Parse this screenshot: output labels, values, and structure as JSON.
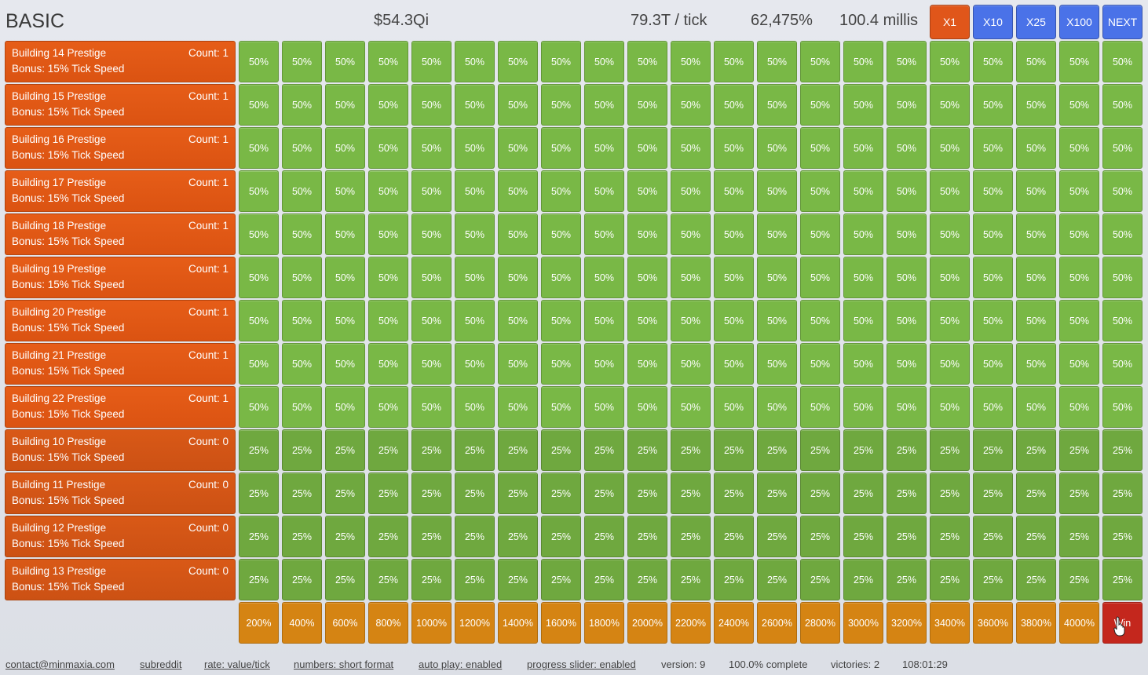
{
  "header": {
    "mode": "BASIC",
    "money": "$54.3Qi",
    "per_tick": "79.3T / tick",
    "percent": "62,475%",
    "millis": "100.4 millis",
    "multipliers": [
      {
        "label": "X1",
        "active": true
      },
      {
        "label": "X10",
        "active": false
      },
      {
        "label": "X25",
        "active": false
      },
      {
        "label": "X100",
        "active": false
      },
      {
        "label": "NEXT",
        "active": false
      }
    ]
  },
  "buildings": [
    {
      "name": "Building 14 Prestige",
      "count": "Count: 1",
      "bonus": "Bonus: 15% Tick Speed",
      "cell_value": "50%"
    },
    {
      "name": "Building 15 Prestige",
      "count": "Count: 1",
      "bonus": "Bonus: 15% Tick Speed",
      "cell_value": "50%"
    },
    {
      "name": "Building 16 Prestige",
      "count": "Count: 1",
      "bonus": "Bonus: 15% Tick Speed",
      "cell_value": "50%"
    },
    {
      "name": "Building 17 Prestige",
      "count": "Count: 1",
      "bonus": "Bonus: 15% Tick Speed",
      "cell_value": "50%"
    },
    {
      "name": "Building 18 Prestige",
      "count": "Count: 1",
      "bonus": "Bonus: 15% Tick Speed",
      "cell_value": "50%"
    },
    {
      "name": "Building 19 Prestige",
      "count": "Count: 1",
      "bonus": "Bonus: 15% Tick Speed",
      "cell_value": "50%"
    },
    {
      "name": "Building 20 Prestige",
      "count": "Count: 1",
      "bonus": "Bonus: 15% Tick Speed",
      "cell_value": "50%"
    },
    {
      "name": "Building 21 Prestige",
      "count": "Count: 1",
      "bonus": "Bonus: 15% Tick Speed",
      "cell_value": "50%"
    },
    {
      "name": "Building 22 Prestige",
      "count": "Count: 1",
      "bonus": "Bonus: 15% Tick Speed",
      "cell_value": "50%"
    },
    {
      "name": "Building 10 Prestige",
      "count": "Count: 0",
      "bonus": "Bonus: 15% Tick Speed",
      "cell_value": "25%"
    },
    {
      "name": "Building 11 Prestige",
      "count": "Count: 0",
      "bonus": "Bonus: 15% Tick Speed",
      "cell_value": "25%"
    },
    {
      "name": "Building 12 Prestige",
      "count": "Count: 0",
      "bonus": "Bonus: 15% Tick Speed",
      "cell_value": "25%"
    },
    {
      "name": "Building 13 Prestige",
      "count": "Count: 0",
      "bonus": "Bonus: 15% Tick Speed",
      "cell_value": "25%"
    }
  ],
  "bonus_row": [
    "200%",
    "400%",
    "600%",
    "800%",
    "1000%",
    "1200%",
    "1400%",
    "1600%",
    "1800%",
    "2000%",
    "2200%",
    "2400%",
    "2600%",
    "2800%",
    "3000%",
    "3200%",
    "3400%",
    "3600%",
    "3800%",
    "4000%"
  ],
  "win_label": "Win",
  "footer": {
    "contact": "contact@minmaxia.com",
    "subreddit": "subreddit",
    "rate": "rate: value/tick",
    "numbers": "numbers: short format",
    "auto_play": "auto play: enabled",
    "progress_slider": "progress slider: enabled",
    "version": "version: 9",
    "complete": "100.0% complete",
    "victories": "victories: 2",
    "time": "108:01:29"
  },
  "colors": {
    "building": "#e65d18",
    "cell_green": "#79b846",
    "bonus_orange": "#d58413",
    "win_red": "#c4271d",
    "button_blue": "#4a72e8",
    "button_active": "#e0561a"
  }
}
